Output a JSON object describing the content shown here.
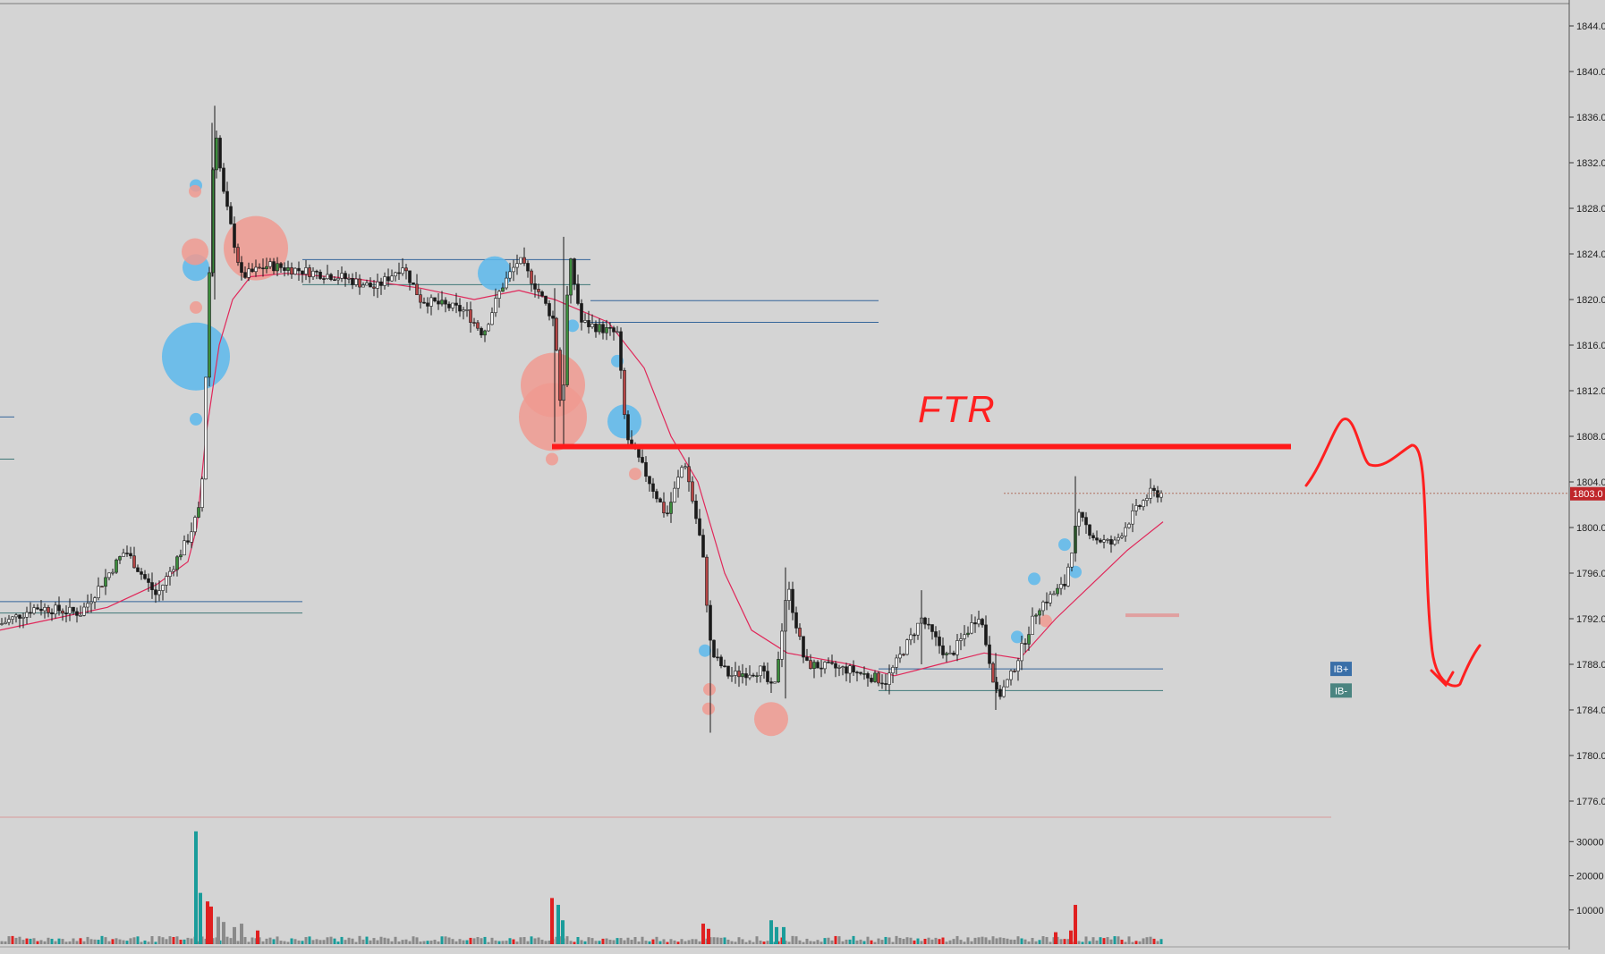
{
  "chart_data": {
    "type": "candlestick",
    "title": "",
    "price_axis": {
      "min": 1772,
      "max": 1846,
      "ticks": [
        1844,
        1840,
        1836,
        1832,
        1828,
        1824,
        1820,
        1816,
        1812,
        1808,
        1804,
        1800,
        1796,
        1792,
        1788,
        1784,
        1780,
        1776
      ],
      "tick_labels": [
        "1844.0",
        "1840.0",
        "1836.0",
        "1832.0",
        "1828.0",
        "1824.0",
        "1820.0",
        "1816.0",
        "1812.0",
        "1808.0",
        "1804.0",
        "1800.0",
        "1796.0",
        "1792.0",
        "1788.0",
        "1784.0",
        "1780.0",
        "1776.0"
      ]
    },
    "current_price": 1803.0,
    "current_price_label": "1803.0",
    "volume_axis": {
      "max": 34000,
      "ticks": [
        30000,
        20000,
        10000
      ],
      "tick_labels": [
        "30000",
        "20000",
        "10000"
      ]
    },
    "price_path": [
      [
        0,
        1791.5
      ],
      [
        40,
        1793
      ],
      [
        90,
        1792.5
      ],
      [
        140,
        1798
      ],
      [
        175,
        1794
      ],
      [
        210,
        1799
      ],
      [
        225,
        1802
      ],
      [
        240,
        1836
      ],
      [
        248,
        1830
      ],
      [
        270,
        1822
      ],
      [
        300,
        1823
      ],
      [
        340,
        1822.5
      ],
      [
        380,
        1822
      ],
      [
        420,
        1821
      ],
      [
        450,
        1823
      ],
      [
        470,
        1820
      ],
      [
        520,
        1819
      ],
      [
        540,
        1817
      ],
      [
        560,
        1821
      ],
      [
        580,
        1823.5
      ],
      [
        600,
        1821
      ],
      [
        620,
        1818
      ],
      [
        628,
        1809
      ],
      [
        636,
        1824
      ],
      [
        650,
        1818
      ],
      [
        690,
        1817
      ],
      [
        700,
        1808
      ],
      [
        720,
        1805
      ],
      [
        745,
        1801
      ],
      [
        765,
        1806
      ],
      [
        785,
        1798
      ],
      [
        795,
        1789
      ],
      [
        815,
        1787
      ],
      [
        850,
        1787.5
      ],
      [
        865,
        1785.5
      ],
      [
        880,
        1795
      ],
      [
        900,
        1788
      ],
      [
        950,
        1787.5
      ],
      [
        990,
        1786.5
      ],
      [
        1030,
        1792
      ],
      [
        1060,
        1788.5
      ],
      [
        1095,
        1792.5
      ],
      [
        1115,
        1785
      ],
      [
        1130,
        1787
      ],
      [
        1160,
        1793
      ],
      [
        1190,
        1795
      ],
      [
        1205,
        1801
      ],
      [
        1225,
        1799
      ],
      [
        1245,
        1798.5
      ],
      [
        1265,
        1801
      ],
      [
        1285,
        1803
      ],
      [
        1300,
        1803
      ]
    ],
    "moving_average": [
      [
        0,
        1791
      ],
      [
        60,
        1792
      ],
      [
        120,
        1793
      ],
      [
        175,
        1795
      ],
      [
        210,
        1797
      ],
      [
        220,
        1800
      ],
      [
        230,
        1808
      ],
      [
        245,
        1816
      ],
      [
        260,
        1820
      ],
      [
        280,
        1822
      ],
      [
        320,
        1822.3
      ],
      [
        400,
        1821.8
      ],
      [
        470,
        1821
      ],
      [
        530,
        1820
      ],
      [
        580,
        1820.8
      ],
      [
        620,
        1820
      ],
      [
        680,
        1818
      ],
      [
        720,
        1814
      ],
      [
        750,
        1808
      ],
      [
        780,
        1804
      ],
      [
        810,
        1796
      ],
      [
        840,
        1791
      ],
      [
        880,
        1789
      ],
      [
        950,
        1788
      ],
      [
        1000,
        1787
      ],
      [
        1050,
        1788
      ],
      [
        1100,
        1789
      ],
      [
        1140,
        1788.5
      ],
      [
        1180,
        1792
      ],
      [
        1220,
        1795
      ],
      [
        1260,
        1798
      ],
      [
        1300,
        1800.5
      ]
    ],
    "sr_lines": [
      {
        "price": 1793.5,
        "x1": 0,
        "x2": 338,
        "color": "#34659a"
      },
      {
        "price": 1792.5,
        "x1": 0,
        "x2": 338,
        "color": "#407878"
      },
      {
        "price": 1823.5,
        "x1": 338,
        "x2": 660,
        "color": "#34659a"
      },
      {
        "price": 1821.3,
        "x1": 338,
        "x2": 660,
        "color": "#407878"
      },
      {
        "price": 1819.9,
        "x1": 660,
        "x2": 982,
        "color": "#34659a"
      },
      {
        "price": 1818.0,
        "x1": 660,
        "x2": 982,
        "color": "#34659a"
      },
      {
        "price": 1787.6,
        "x1": 982,
        "x2": 1300,
        "color": "#34659a"
      },
      {
        "price": 1785.7,
        "x1": 982,
        "x2": 1300,
        "color": "#407878"
      },
      {
        "price": 1809.7,
        "x1": 0,
        "x2": 16,
        "color": "#34659a"
      },
      {
        "price": 1806.0,
        "x1": 0,
        "x2": 16,
        "color": "#407878"
      }
    ],
    "ib_labels": [
      {
        "text": "IB+",
        "price": 1787.6
      },
      {
        "text": "IB-",
        "price": 1785.7
      }
    ],
    "bubbles": [
      {
        "x": 219,
        "price": 1815,
        "size": "xl",
        "side": "buy"
      },
      {
        "x": 286,
        "price": 1824.5,
        "size": "l",
        "side": "sell"
      },
      {
        "x": 618,
        "price": 1812.5,
        "size": "l",
        "side": "sell"
      },
      {
        "x": 618,
        "price": 1809.7,
        "size": "xl",
        "side": "sell"
      },
      {
        "x": 553,
        "price": 1822.3,
        "size": "m",
        "side": "buy"
      },
      {
        "x": 698,
        "price": 1809.3,
        "size": "m",
        "side": "buy"
      },
      {
        "x": 219,
        "price": 1822.8,
        "size": "s",
        "side": "buy"
      },
      {
        "x": 218,
        "price": 1824.2,
        "size": "s",
        "side": "sell"
      },
      {
        "x": 862,
        "price": 1783.2,
        "size": "m",
        "side": "sell"
      },
      {
        "x": 219,
        "price": 1830,
        "size": "xs",
        "side": "buy"
      },
      {
        "x": 218,
        "price": 1829.5,
        "size": "xs",
        "side": "sell"
      },
      {
        "x": 219,
        "price": 1809.5,
        "size": "xs",
        "side": "buy"
      },
      {
        "x": 219,
        "price": 1819.3,
        "size": "xs",
        "side": "sell"
      },
      {
        "x": 690,
        "price": 1814.6,
        "size": "xs",
        "side": "buy"
      },
      {
        "x": 617,
        "price": 1806,
        "size": "xs",
        "side": "sell"
      },
      {
        "x": 710,
        "price": 1804.7,
        "size": "xs",
        "side": "sell"
      },
      {
        "x": 793,
        "price": 1785.8,
        "size": "xs",
        "side": "sell"
      },
      {
        "x": 792,
        "price": 1784.1,
        "size": "xs",
        "side": "sell"
      },
      {
        "x": 788,
        "price": 1789.2,
        "size": "xs",
        "side": "buy"
      },
      {
        "x": 1137,
        "price": 1790.4,
        "size": "xs",
        "side": "buy"
      },
      {
        "x": 1156,
        "price": 1795.5,
        "size": "xs",
        "side": "buy"
      },
      {
        "x": 1190,
        "price": 1798.5,
        "size": "xs",
        "side": "buy"
      },
      {
        "x": 1202,
        "price": 1796.1,
        "size": "xs",
        "side": "buy"
      },
      {
        "x": 1169,
        "price": 1791.8,
        "size": "xs",
        "side": "sell"
      },
      {
        "x": 640,
        "price": 1817.7,
        "size": "xs",
        "side": "buy"
      }
    ],
    "volume_spikes": [
      {
        "x": 219,
        "value": 33000,
        "side": "buy"
      },
      {
        "x": 224,
        "value": 15000,
        "side": "buy"
      },
      {
        "x": 232,
        "value": 12500,
        "side": "sell"
      },
      {
        "x": 236,
        "value": 11000,
        "side": "sell"
      },
      {
        "x": 244,
        "value": 8000,
        "side": "neutral"
      },
      {
        "x": 250,
        "value": 6500,
        "side": "neutral"
      },
      {
        "x": 262,
        "value": 5000,
        "side": "neutral"
      },
      {
        "x": 270,
        "value": 6000,
        "side": "neutral"
      },
      {
        "x": 288,
        "value": 4000,
        "side": "sell"
      },
      {
        "x": 617,
        "value": 13500,
        "side": "sell"
      },
      {
        "x": 624,
        "value": 11500,
        "side": "buy"
      },
      {
        "x": 629,
        "value": 7000,
        "side": "buy"
      },
      {
        "x": 786,
        "value": 6000,
        "side": "sell"
      },
      {
        "x": 792,
        "value": 4500,
        "side": "sell"
      },
      {
        "x": 862,
        "value": 7000,
        "side": "buy"
      },
      {
        "x": 868,
        "value": 5000,
        "side": "buy"
      },
      {
        "x": 876,
        "value": 5000,
        "side": "buy"
      },
      {
        "x": 1202,
        "value": 11500,
        "side": "sell"
      },
      {
        "x": 1197,
        "value": 4000,
        "side": "sell"
      },
      {
        "x": 1180,
        "value": 3500,
        "side": "sell"
      }
    ]
  },
  "annotation": {
    "label": "FTR",
    "level_price": 1807.1,
    "x1": 617,
    "x2": 1443
  },
  "colors": {
    "background": "#d4d4d4",
    "candle": "#1a1a1a",
    "bull_body": "#3c8c3c",
    "bear_body": "#b44444",
    "ma_line": "#e0285a",
    "buy_bubble": "#5cb8ec",
    "sell_bubble": "#f09a90",
    "volume_buy": "#1a9c9a",
    "volume_sell": "#e02020",
    "volume_neutral": "#8a8a8a",
    "annotation": "#ff2020",
    "price_tag": "#c0262a",
    "ib_plus": "#3a6fa8",
    "ib_minus": "#4a8480"
  }
}
